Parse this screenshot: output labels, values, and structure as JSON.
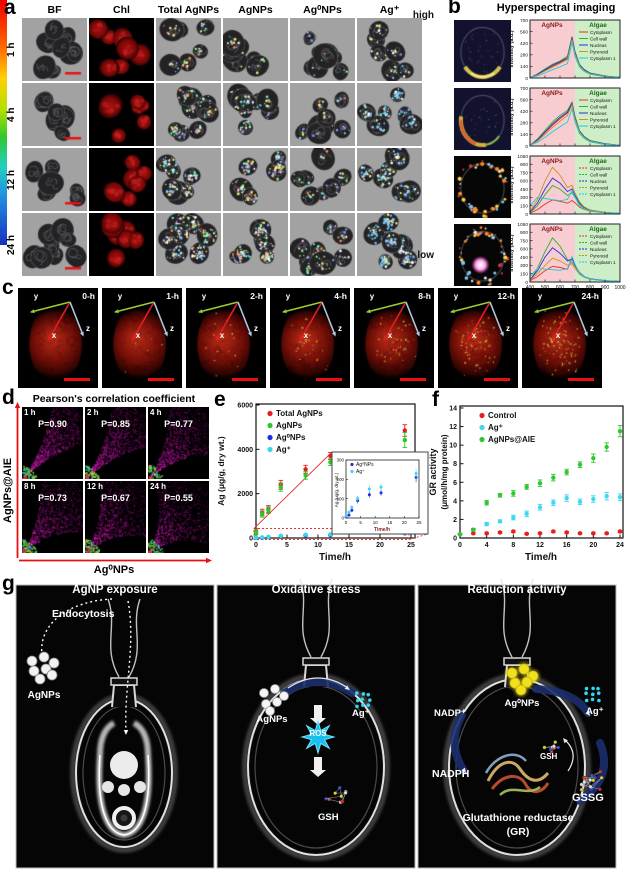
{
  "panels": {
    "a": "a",
    "b": "b",
    "c": "c",
    "d": "d",
    "e": "e",
    "f": "f",
    "g": "g"
  },
  "panel_a": {
    "columns": [
      "BF",
      "Chl",
      "Total AgNPs",
      "AgNPs",
      "Ag⁰NPs",
      "Ag⁺"
    ],
    "rows": [
      "1 h",
      "4 h",
      "12 h",
      "24 h"
    ],
    "colorbar_high": "high",
    "colorbar_low": "low"
  },
  "panel_b": {
    "title": "Hyperspectral imaging"
  },
  "panel_c": {
    "times": [
      "0-h",
      "1-h",
      "2-h",
      "4-h",
      "8-h",
      "12-h",
      "24-h"
    ],
    "axis_x": "x",
    "axis_y": "y",
    "axis_z": "z"
  },
  "panel_d": {
    "title": "Pearson's correlation coefficient",
    "ylabel": "AgNPs@AIE",
    "xlabel": "Ag⁰NPs",
    "cells": [
      {
        "time": "1 h",
        "p": "P=0.90",
        "pv": 0.9
      },
      {
        "time": "2 h",
        "p": "P=0.85",
        "pv": 0.85
      },
      {
        "time": "4 h",
        "p": "P=0.77",
        "pv": 0.77
      },
      {
        "time": "8 h",
        "p": "P=0.73",
        "pv": 0.73
      },
      {
        "time": "12 h",
        "p": "P=0.67",
        "pv": 0.67
      },
      {
        "time": "24 h",
        "p": "P=0.55",
        "pv": 0.55
      }
    ]
  },
  "panel_e": {
    "ylabel": "Ag (μg/g, dry wt.)",
    "xlabel": "Time/h"
  },
  "panel_f": {
    "ylabel_line1": "GR activity",
    "ylabel_line2": "(μmol/h/mg protein)",
    "xlabel": "Time/h"
  },
  "panel_g": {
    "p1": {
      "title": "AgNP exposure",
      "endocytosis": "Endocytosis",
      "agnps": "AgNPs"
    },
    "p2": {
      "title": "Oxidative stress",
      "agnps": "AgNPs",
      "ag_ion": "Ag⁺",
      "ros": "ROS",
      "gsh": "GSH"
    },
    "p3": {
      "title": "Reduction activity",
      "ag0nps": "Ag⁰NPs",
      "nadp": "NADP⁺",
      "ag_ion": "Ag⁺",
      "nadph": "NADPH",
      "gsh": "GSH",
      "gssg": "GSSG",
      "gr_line1": "Glutathione reductase",
      "gr_line2": "(GR)"
    }
  },
  "chart_data": [
    {
      "id": "b_spectrum_1h",
      "type": "line",
      "xlabel": "Wavelength/nm",
      "ylabel": "Intensity (a.u.)",
      "xlim": [
        400,
        1000
      ],
      "ylim": [
        0,
        700
      ],
      "yticks": [
        0,
        140,
        280,
        420,
        560,
        700
      ],
      "xticks": [
        400,
        500,
        600,
        700,
        800,
        900,
        1000
      ],
      "regions": [
        {
          "label": "AgNPs",
          "range": [
            400,
            700
          ],
          "color": "#f8cdd2"
        },
        {
          "label": "Algae",
          "range": [
            700,
            1000
          ],
          "color": "#cdeec6"
        }
      ],
      "x": [
        400,
        450,
        500,
        550,
        600,
        650,
        680,
        700,
        730,
        760,
        800,
        900,
        1000
      ],
      "series": [
        {
          "name": "Cytoplasm",
          "color": "#e83020",
          "values": [
            5,
            40,
            90,
            140,
            185,
            235,
            480,
            300,
            150,
            95,
            55,
            20,
            8
          ]
        },
        {
          "name": "Cell wall",
          "color": "#2cb42c",
          "values": [
            5,
            50,
            110,
            165,
            205,
            265,
            500,
            320,
            165,
            105,
            60,
            25,
            8
          ]
        },
        {
          "name": "Nucleus",
          "color": "#2830e0",
          "values": [
            5,
            45,
            100,
            155,
            195,
            245,
            490,
            310,
            158,
            100,
            58,
            22,
            8
          ]
        },
        {
          "name": "Pyrenoid",
          "color": "#c8961e",
          "values": [
            5,
            35,
            85,
            130,
            175,
            225,
            465,
            290,
            148,
            90,
            52,
            18,
            8
          ]
        },
        {
          "name": "Cytoplasm 1",
          "color": "#22c8e0",
          "values": [
            5,
            25,
            60,
            100,
            135,
            175,
            430,
            260,
            132,
            80,
            45,
            15,
            8
          ]
        }
      ]
    },
    {
      "id": "b_spectrum_4h",
      "type": "line",
      "xlabel": "Wavelength/nm",
      "ylabel": "Intensity (a.u.)",
      "xlim": [
        400,
        1000
      ],
      "ylim": [
        0,
        700
      ],
      "yticks": [
        0,
        140,
        280,
        420,
        560,
        700
      ],
      "xticks": [
        400,
        500,
        600,
        700,
        800,
        900,
        1000
      ],
      "regions": [
        {
          "label": "AgNPs",
          "range": [
            400,
            700
          ],
          "color": "#f8cdd2"
        },
        {
          "label": "Algae",
          "range": [
            700,
            1000
          ],
          "color": "#cdeec6"
        }
      ],
      "x": [
        400,
        450,
        500,
        550,
        600,
        650,
        680,
        700,
        730,
        760,
        800,
        900,
        1000
      ],
      "series": [
        {
          "name": "Cytoplasm",
          "color": "#e83020",
          "values": [
            8,
            70,
            160,
            250,
            330,
            400,
            510,
            340,
            175,
            110,
            62,
            25,
            8
          ]
        },
        {
          "name": "Cell wall",
          "color": "#2cb42c",
          "values": [
            8,
            85,
            190,
            290,
            370,
            430,
            530,
            360,
            185,
            118,
            66,
            28,
            8
          ]
        },
        {
          "name": "Nucleus",
          "color": "#2830e0",
          "values": [
            8,
            75,
            170,
            265,
            345,
            410,
            515,
            345,
            178,
            112,
            63,
            26,
            8
          ]
        },
        {
          "name": "Pyrenoid",
          "color": "#c8961e",
          "values": [
            8,
            60,
            140,
            225,
            300,
            370,
            495,
            325,
            168,
            105,
            58,
            22,
            8
          ]
        },
        {
          "name": "Cytoplasm 1",
          "color": "#22c8e0",
          "values": [
            8,
            45,
            105,
            170,
            230,
            290,
            450,
            290,
            150,
            92,
            50,
            18,
            8
          ]
        }
      ]
    },
    {
      "id": "b_spectrum_12h",
      "type": "line",
      "xlabel": "Wavelength/nm",
      "ylabel": "Intensity (a.u.)",
      "xlim": [
        400,
        1000
      ],
      "ylim": [
        0,
        1050
      ],
      "yticks": [
        0,
        150,
        300,
        450,
        600,
        750,
        900,
        1050
      ],
      "xticks": [
        400,
        500,
        600,
        700,
        800,
        900,
        1000
      ],
      "regions": [
        {
          "label": "AgNPs",
          "range": [
            400,
            700
          ],
          "color": "#f8cdd2"
        },
        {
          "label": "Algae",
          "range": [
            700,
            1000
          ],
          "color": "#cdeec6"
        }
      ],
      "x": [
        400,
        450,
        500,
        550,
        600,
        650,
        680,
        700,
        730,
        760,
        800,
        900,
        1000
      ],
      "series": [
        {
          "name": "Cytoplasm",
          "color": "#e83020",
          "values": [
            15,
            80,
            180,
            255,
            230,
            195,
            245,
            205,
            125,
            85,
            50,
            22,
            10
          ]
        },
        {
          "name": "Cell wall",
          "color": "#2cb42c",
          "values": [
            25,
            150,
            350,
            515,
            450,
            335,
            385,
            300,
            180,
            112,
            62,
            26,
            10
          ]
        },
        {
          "name": "Nucleus",
          "color": "#2830e0",
          "values": [
            35,
            200,
            450,
            650,
            560,
            405,
            455,
            340,
            200,
            122,
            70,
            30,
            10
          ]
        },
        {
          "name": "Pyrenoid",
          "color": "#c8961e",
          "values": [
            45,
            260,
            600,
            845,
            700,
            480,
            520,
            380,
            220,
            132,
            75,
            30,
            10
          ]
        },
        {
          "name": "Cytoplasm 1",
          "color": "#22c8e0",
          "values": [
            150,
            300,
            280,
            258,
            240,
            262,
            430,
            300,
            152,
            92,
            52,
            22,
            10
          ]
        }
      ]
    },
    {
      "id": "b_spectrum_24h",
      "type": "line",
      "xlabel": "Wavelength/nm",
      "ylabel": "Intensity (a.u.)",
      "xlim": [
        400,
        1000
      ],
      "ylim": [
        0,
        1050
      ],
      "yticks": [
        0,
        150,
        300,
        450,
        600,
        750,
        900,
        1050
      ],
      "xticks": [
        400,
        500,
        600,
        700,
        800,
        900,
        1000
      ],
      "regions": [
        {
          "label": "AgNPs",
          "range": [
            400,
            700
          ],
          "color": "#f8cdd2"
        },
        {
          "label": "Algae",
          "range": [
            700,
            1000
          ],
          "color": "#cdeec6"
        }
      ],
      "x": [
        400,
        450,
        500,
        550,
        600,
        650,
        680,
        700,
        730,
        760,
        800,
        900,
        1000
      ],
      "series": [
        {
          "name": "Cytoplasm",
          "color": "#e83020",
          "values": [
            20,
            100,
            205,
            285,
            262,
            232,
            430,
            300,
            152,
            92,
            52,
            22,
            10
          ]
        },
        {
          "name": "Cell wall",
          "color": "#2cb42c",
          "values": [
            30,
            250,
            550,
            800,
            650,
            405,
            355,
            252,
            142,
            90,
            52,
            20,
            10
          ]
        },
        {
          "name": "Nucleus",
          "color": "#2830e0",
          "values": [
            40,
            205,
            450,
            620,
            522,
            382,
            422,
            300,
            172,
            102,
            60,
            25,
            10
          ]
        },
        {
          "name": "Pyrenoid",
          "color": "#c8961e",
          "values": [
            30,
            150,
            300,
            430,
            382,
            302,
            332,
            252,
            142,
            86,
            50,
            20,
            10
          ]
        },
        {
          "name": "Cytoplasm 1",
          "color": "#22c8e0",
          "values": [
            100,
            250,
            232,
            222,
            212,
            242,
            462,
            322,
            162,
            96,
            56,
            22,
            10
          ]
        }
      ]
    },
    {
      "id": "e_main",
      "type": "scatter",
      "xlabel": "Time/h",
      "ylabel": "Ag (μg/g, dry wt.)",
      "xlim": [
        0,
        25
      ],
      "ylim": [
        0,
        6000
      ],
      "xticks": [
        0,
        5,
        10,
        15,
        20,
        25
      ],
      "yticks": [
        0,
        2000,
        4000,
        6000
      ],
      "x": [
        0,
        1,
        2,
        4,
        8,
        12,
        24
      ],
      "series": [
        {
          "name": "Total AgNPs",
          "color": "#e81e1e",
          "values": [
            300,
            1150,
            1300,
            2400,
            3100,
            3700,
            4850
          ],
          "errors": [
            120,
            150,
            160,
            200,
            180,
            160,
            260
          ]
        },
        {
          "name": "AgNPs",
          "color": "#28c828",
          "values": [
            250,
            1080,
            1250,
            2300,
            2820,
            3420,
            4420
          ],
          "errors": [
            110,
            140,
            150,
            190,
            170,
            150,
            340
          ]
        },
        {
          "name": "Ag⁰NPs",
          "color": "#2828e8",
          "values": [
            5,
            15,
            40,
            90,
            120,
            130,
            210
          ],
          "errors": [
            5,
            8,
            10,
            15,
            15,
            15,
            25
          ]
        },
        {
          "name": "Ag⁺",
          "color": "#38d8e8",
          "values": [
            10,
            30,
            55,
            100,
            150,
            160,
            230
          ],
          "errors": [
            5,
            8,
            10,
            15,
            18,
            18,
            25
          ]
        }
      ]
    },
    {
      "id": "e_inset",
      "type": "scatter",
      "xlabel": "Time/h",
      "ylabel": "Ag (μg/g, dry wt.)",
      "xlim": [
        0,
        25
      ],
      "ylim": [
        0,
        300
      ],
      "xticks": [
        0,
        5,
        10,
        15,
        20,
        25
      ],
      "yticks": [
        0,
        100,
        200,
        300
      ],
      "x": [
        0,
        1,
        2,
        4,
        8,
        12,
        24
      ],
      "series": [
        {
          "name": "Ag⁰NPs",
          "color": "#2828e8",
          "values": [
            5,
            15,
            40,
            90,
            120,
            130,
            210
          ],
          "errors": [
            5,
            8,
            10,
            15,
            15,
            15,
            25
          ]
        },
        {
          "name": "Ag⁺",
          "color": "#38d8e8",
          "values": [
            10,
            30,
            55,
            100,
            150,
            160,
            230
          ],
          "errors": [
            5,
            8,
            10,
            15,
            18,
            18,
            25
          ]
        }
      ]
    },
    {
      "id": "f_gr",
      "type": "scatter",
      "xlabel": "Time/h",
      "ylabel": "GR activity (μmol/h/mg protein)",
      "xlim": [
        0,
        24
      ],
      "ylim": [
        0,
        14
      ],
      "xticks": [
        0,
        4,
        8,
        12,
        16,
        20,
        24
      ],
      "yticks": [
        0,
        2,
        4,
        6,
        8,
        10,
        12,
        14
      ],
      "x": [
        0,
        2,
        4,
        6,
        8,
        10,
        12,
        14,
        16,
        18,
        20,
        22,
        24
      ],
      "series": [
        {
          "name": "Control",
          "color": "#e81e1e",
          "values": [
            0.4,
            0.5,
            0.5,
            0.6,
            0.7,
            0.45,
            0.5,
            0.7,
            0.6,
            0.5,
            0.5,
            0.5,
            0.7
          ],
          "errors": [
            0.08,
            0.08,
            0.08,
            0.1,
            0.1,
            0.08,
            0.08,
            0.1,
            0.1,
            0.08,
            0.08,
            0.08,
            0.12
          ]
        },
        {
          "name": "Ag⁺",
          "color": "#40d8f0",
          "values": [
            0.4,
            0.9,
            1.5,
            1.8,
            2.2,
            2.6,
            3.3,
            3.8,
            4.3,
            3.9,
            4.2,
            4.5,
            4.4
          ],
          "errors": [
            0.08,
            0.12,
            0.18,
            0.15,
            0.25,
            0.3,
            0.3,
            0.3,
            0.35,
            0.3,
            0.35,
            0.4,
            0.35
          ]
        },
        {
          "name": "AgNPs@AIE",
          "color": "#30c830",
          "values": [
            0.4,
            0.9,
            3.8,
            4.6,
            4.8,
            5.5,
            5.9,
            6.5,
            7.1,
            7.9,
            8.6,
            9.8,
            11.5
          ],
          "errors": [
            0.08,
            0.12,
            0.25,
            0.2,
            0.3,
            0.25,
            0.35,
            0.35,
            0.3,
            0.3,
            0.45,
            0.45,
            0.6
          ]
        }
      ]
    }
  ]
}
